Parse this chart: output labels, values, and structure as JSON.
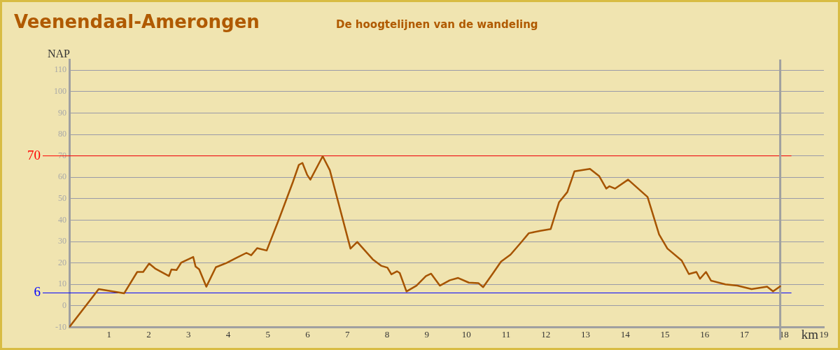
{
  "chart_data": {
    "type": "line",
    "title": "Veenendaal-Amerongen",
    "subtitle": "De hoogtelijnen van de wandeling",
    "xlabel": "km",
    "ylabel": "NAP",
    "xlim": [
      0,
      19
    ],
    "xticks": [
      1,
      2,
      3,
      4,
      5,
      6,
      7,
      8,
      9,
      10,
      11,
      12,
      13,
      14,
      15,
      16,
      17,
      18,
      19
    ],
    "ylim": [
      -10,
      115
    ],
    "yticks": [
      -10,
      0,
      10,
      20,
      30,
      40,
      50,
      60,
      70,
      80,
      90,
      100,
      110
    ],
    "grid": "y",
    "legend": false,
    "marker": "none",
    "line_style": "solid",
    "ref_lines": [
      {
        "axis": "y",
        "value": 70,
        "label": "70",
        "color": "#ff0000"
      },
      {
        "axis": "y",
        "value": 6,
        "label": "6",
        "color": "#0000ff"
      },
      {
        "axis": "x",
        "value": 17.9,
        "color": "#a0a0a0"
      }
    ],
    "series": [
      {
        "color": "#a65400",
        "x": [
          0,
          0.74,
          1.38,
          1.71,
          1.86,
          2.01,
          2.16,
          2.51,
          2.57,
          2.7,
          2.82,
          3.12,
          3.18,
          3.27,
          3.45,
          3.69,
          3.96,
          4.19,
          4.46,
          4.58,
          4.73,
          4.97,
          5.27,
          5.63,
          5.78,
          5.87,
          5.99,
          6.07,
          6.38,
          6.56,
          7.08,
          7.25,
          7.64,
          7.85,
          8.01,
          8.11,
          8.25,
          8.32,
          8.49,
          8.74,
          8.98,
          9.11,
          9.33,
          9.58,
          9.79,
          10.06,
          10.3,
          10.42,
          10.66,
          10.87,
          11.11,
          11.38,
          11.57,
          11.86,
          12.12,
          12.33,
          12.54,
          12.72,
          13.11,
          13.34,
          13.52,
          13.6,
          13.74,
          14.07,
          14.56,
          14.85,
          15.06,
          15.42,
          15.6,
          15.79,
          15.88,
          16.03,
          16.16,
          16.52,
          16.82,
          17.18,
          17.57,
          17.72,
          17.9
        ],
        "values": [
          -10,
          7.8,
          5.8,
          15.8,
          15.8,
          19.7,
          17.4,
          13.9,
          16.9,
          16.7,
          20.2,
          22.8,
          18.3,
          17,
          8.9,
          18,
          20,
          22.2,
          24.7,
          23.6,
          26.9,
          25.8,
          40,
          57.8,
          65.8,
          66.7,
          61.1,
          58.9,
          69.8,
          63.3,
          26.7,
          29.8,
          21.7,
          18.7,
          17.8,
          14.7,
          16.1,
          15.3,
          6.7,
          9.4,
          13.9,
          15,
          9.4,
          11.9,
          13,
          10.8,
          10.6,
          8.7,
          15,
          20.6,
          23.9,
          29.7,
          33.9,
          35,
          35.8,
          48.3,
          53.1,
          62.8,
          63.9,
          60.6,
          54.7,
          55.8,
          54.7,
          58.9,
          50.8,
          33.3,
          26.7,
          21.1,
          14.8,
          15.8,
          12.6,
          15.8,
          11.7,
          10,
          9.4,
          7.8,
          8.9,
          6.7,
          9.1
        ]
      }
    ]
  }
}
